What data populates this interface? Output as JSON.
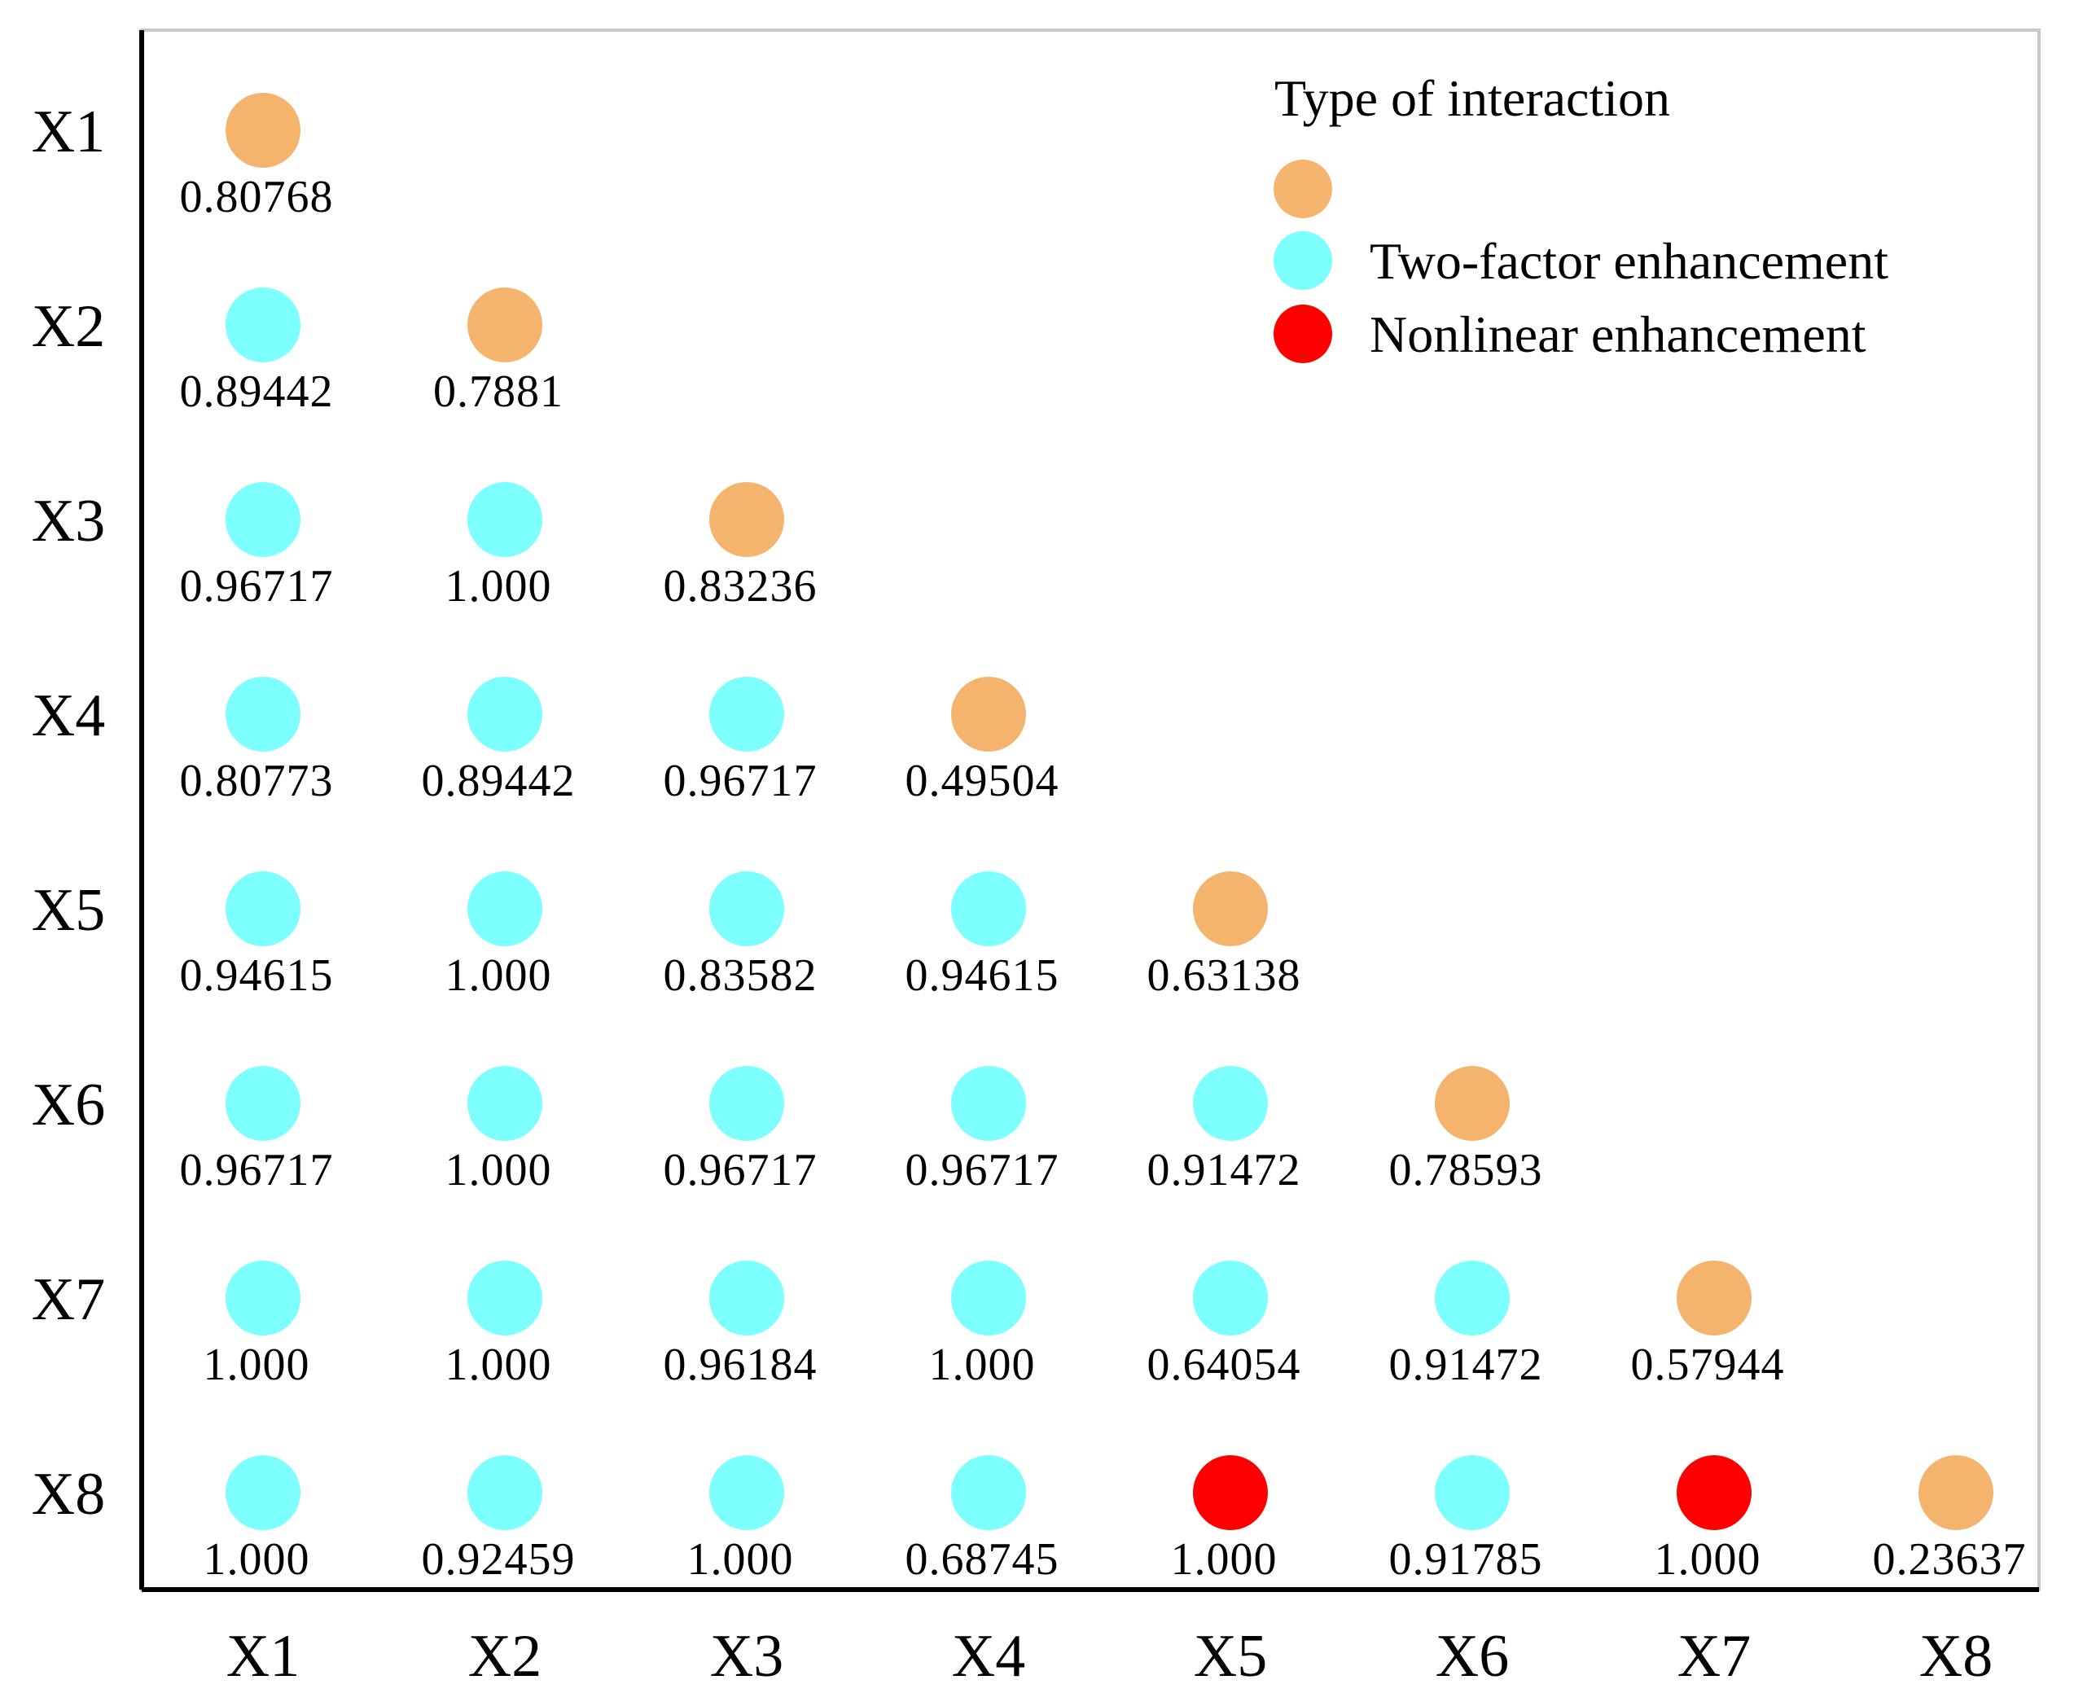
{
  "chart_data": {
    "type": "scatter",
    "title": "",
    "xlabel": "",
    "ylabel": "",
    "x_categories": [
      "X1",
      "X2",
      "X3",
      "X4",
      "X5",
      "X6",
      "X7",
      "X8"
    ],
    "y_categories": [
      "X1",
      "X2",
      "X3",
      "X4",
      "X5",
      "X6",
      "X7",
      "X8"
    ],
    "legend": {
      "title": "Type of interaction",
      "placement": "top-right",
      "items": [
        {
          "key": "single",
          "label": "",
          "color": "#F5B46E"
        },
        {
          "key": "two",
          "label": "Two-factor enhancement",
          "color": "#7DFFFF"
        },
        {
          "key": "nonlinear",
          "label": "Nonlinear enhancement",
          "color": "#FF0000"
        }
      ]
    },
    "points": [
      {
        "row": "X1",
        "col": "X1",
        "value": "0.80768",
        "type": "single"
      },
      {
        "row": "X2",
        "col": "X1",
        "value": "0.89442",
        "type": "two"
      },
      {
        "row": "X2",
        "col": "X2",
        "value": "0.7881",
        "type": "single"
      },
      {
        "row": "X3",
        "col": "X1",
        "value": "0.96717",
        "type": "two"
      },
      {
        "row": "X3",
        "col": "X2",
        "value": "1.000",
        "type": "two"
      },
      {
        "row": "X3",
        "col": "X3",
        "value": "0.83236",
        "type": "single"
      },
      {
        "row": "X4",
        "col": "X1",
        "value": "0.80773",
        "type": "two"
      },
      {
        "row": "X4",
        "col": "X2",
        "value": "0.89442",
        "type": "two"
      },
      {
        "row": "X4",
        "col": "X3",
        "value": "0.96717",
        "type": "two"
      },
      {
        "row": "X4",
        "col": "X4",
        "value": "0.49504",
        "type": "single"
      },
      {
        "row": "X5",
        "col": "X1",
        "value": "0.94615",
        "type": "two"
      },
      {
        "row": "X5",
        "col": "X2",
        "value": "1.000",
        "type": "two"
      },
      {
        "row": "X5",
        "col": "X3",
        "value": "0.83582",
        "type": "two"
      },
      {
        "row": "X5",
        "col": "X4",
        "value": "0.94615",
        "type": "two"
      },
      {
        "row": "X5",
        "col": "X5",
        "value": "0.63138",
        "type": "single"
      },
      {
        "row": "X6",
        "col": "X1",
        "value": "0.96717",
        "type": "two"
      },
      {
        "row": "X6",
        "col": "X2",
        "value": "1.000",
        "type": "two"
      },
      {
        "row": "X6",
        "col": "X3",
        "value": "0.96717",
        "type": "two"
      },
      {
        "row": "X6",
        "col": "X4",
        "value": "0.96717",
        "type": "two"
      },
      {
        "row": "X6",
        "col": "X5",
        "value": "0.91472",
        "type": "two"
      },
      {
        "row": "X6",
        "col": "X6",
        "value": "0.78593",
        "type": "single"
      },
      {
        "row": "X7",
        "col": "X1",
        "value": "1.000",
        "type": "two"
      },
      {
        "row": "X7",
        "col": "X2",
        "value": "1.000",
        "type": "two"
      },
      {
        "row": "X7",
        "col": "X3",
        "value": "0.96184",
        "type": "two"
      },
      {
        "row": "X7",
        "col": "X4",
        "value": "1.000",
        "type": "two"
      },
      {
        "row": "X7",
        "col": "X5",
        "value": "0.64054",
        "type": "two"
      },
      {
        "row": "X7",
        "col": "X6",
        "value": "0.91472",
        "type": "two"
      },
      {
        "row": "X7",
        "col": "X7",
        "value": "0.57944",
        "type": "single"
      },
      {
        "row": "X8",
        "col": "X1",
        "value": "1.000",
        "type": "two"
      },
      {
        "row": "X8",
        "col": "X2",
        "value": "0.92459",
        "type": "two"
      },
      {
        "row": "X8",
        "col": "X3",
        "value": "1.000",
        "type": "two"
      },
      {
        "row": "X8",
        "col": "X4",
        "value": "0.68745",
        "type": "two"
      },
      {
        "row": "X8",
        "col": "X5",
        "value": "1.000",
        "type": "nonlinear"
      },
      {
        "row": "X8",
        "col": "X6",
        "value": "0.91785",
        "type": "two"
      },
      {
        "row": "X8",
        "col": "X7",
        "value": "1.000",
        "type": "nonlinear"
      },
      {
        "row": "X8",
        "col": "X8",
        "value": "0.23637",
        "type": "single"
      }
    ]
  }
}
